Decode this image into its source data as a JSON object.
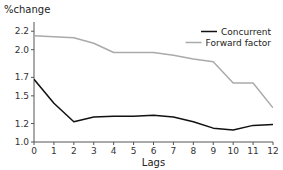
{
  "chart_data": {
    "type": "line",
    "x": [
      0,
      1,
      2,
      3,
      4,
      5,
      6,
      7,
      8,
      9,
      10,
      11,
      12
    ],
    "series": [
      {
        "name": "Concurrent",
        "color": "#111111",
        "values": [
          1.68,
          1.42,
          1.22,
          1.27,
          1.28,
          1.28,
          1.29,
          1.27,
          1.22,
          1.15,
          1.13,
          1.18,
          1.19
        ]
      },
      {
        "name": "Forward factor",
        "color": "#aaaaaa",
        "values": [
          2.15,
          2.14,
          2.13,
          2.07,
          1.97,
          1.97,
          1.97,
          1.94,
          1.9,
          1.87,
          1.64,
          1.64,
          1.37
        ]
      }
    ],
    "xlabel": "Lags",
    "ylabel": "%change",
    "xlim": [
      0,
      12
    ],
    "xticks": [
      0,
      1,
      2,
      3,
      4,
      5,
      6,
      7,
      8,
      9,
      10,
      11,
      12
    ],
    "ylim": [
      1.0,
      2.3
    ],
    "yticks": [
      {
        "value": 1.0,
        "label": "1.0"
      },
      1.2,
      1.5,
      1.7,
      {
        "value": 2.0,
        "label": "2.0"
      },
      2.2
    ],
    "legend": "upper right",
    "grid": false
  }
}
